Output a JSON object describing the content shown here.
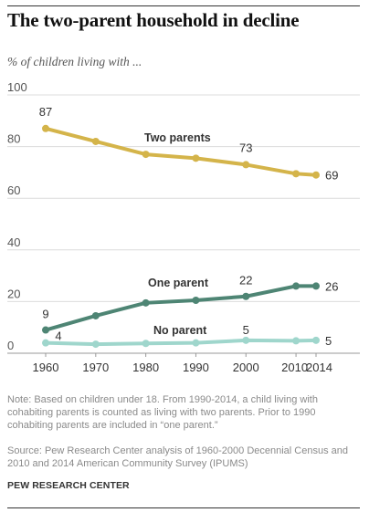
{
  "title": "The two-parent household in decline",
  "subtitle": "% of children living with ...",
  "note": "Note: Based on children under 18. From 1990-2014, a child living with cohabiting parents is counted as living with two parents. Prior to 1990 cohabiting parents are included in “one parent.”",
  "source": "Source: Pew Research Center analysis of 1960-2000 Decennial Census and 2010 and 2014 American Community Survey (IPUMS)",
  "credit": "PEW RESEARCH CENTER",
  "chart_data": {
    "type": "line",
    "x": [
      1960,
      1970,
      1980,
      1990,
      2000,
      2010,
      2014
    ],
    "xticks": [
      "1960",
      "1970",
      "1980",
      "1990",
      "2000",
      "2010",
      "2014"
    ],
    "ylim": [
      0,
      100
    ],
    "yticks": [
      0,
      20,
      40,
      60,
      80,
      100
    ],
    "grid": true,
    "legend": "inline",
    "series": [
      {
        "name": "Two parents",
        "color": "#d4b44a",
        "values": [
          87,
          82,
          77,
          75.5,
          73,
          69.5,
          69
        ],
        "labels": [
          {
            "index": 0,
            "text": "87"
          },
          {
            "index": 4,
            "text": "73"
          },
          {
            "index": 6,
            "text": "69"
          }
        ]
      },
      {
        "name": "One parent",
        "color": "#4e8574",
        "values": [
          9,
          14.5,
          19.5,
          20.5,
          22,
          26,
          26
        ],
        "labels": [
          {
            "index": 0,
            "text": "9"
          },
          {
            "index": 4,
            "text": "22"
          },
          {
            "index": 6,
            "text": "26"
          }
        ]
      },
      {
        "name": "No parent",
        "color": "#9fd6cc",
        "values": [
          4,
          3.5,
          3.8,
          4,
          5,
          4.8,
          5
        ],
        "labels": [
          {
            "index": 0,
            "text": "4"
          },
          {
            "index": 4,
            "text": "5"
          },
          {
            "index": 6,
            "text": "5"
          }
        ]
      }
    ]
  }
}
